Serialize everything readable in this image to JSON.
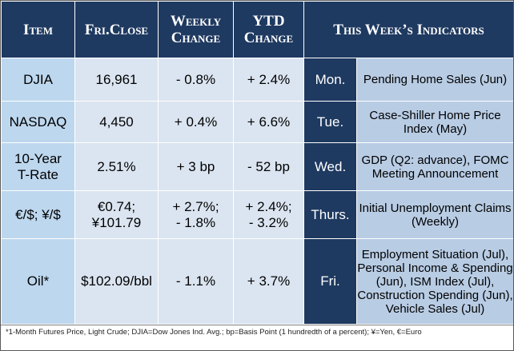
{
  "headers": {
    "item": "Item",
    "fri_close_1": "Fri.",
    "fri_close_2": "Close",
    "weekly_1": "Weekly",
    "weekly_2": "Change",
    "ytd_1": "YTD",
    "ytd_2": "Change",
    "indicators": "This Week’s Indicators"
  },
  "rows": [
    {
      "item": "DJIA",
      "close": "16,961",
      "weekly": "- 0.8%",
      "ytd": "+ 2.4%",
      "day": "Mon.",
      "indicator": "Pending Home Sales (Jun)"
    },
    {
      "item": "NASDAQ",
      "close": "4,450",
      "weekly": "+ 0.4%",
      "ytd": "+ 6.6%",
      "day": "Tue.",
      "indicator": "Case-Shiller Home Price Index (May)"
    },
    {
      "item_1": "10-Year",
      "item_2": "T-Rate",
      "close": "2.51%",
      "weekly": "+ 3 bp",
      "ytd": "- 52 bp",
      "day": "Wed.",
      "indicator": "GDP (Q2: advance), FOMC Meeting Announcement"
    },
    {
      "item": "€/$; ¥/$",
      "close_1": "€0.74;",
      "close_2": "¥101.79",
      "weekly_1": "+ 2.7%;",
      "weekly_2": "- 1.8%",
      "ytd_1": "+ 2.4%;",
      "ytd_2": "- 3.2%",
      "day": "Thurs.",
      "indicator": "Initial Unemployment Claims (Weekly)"
    },
    {
      "item": "Oil*",
      "close": "$102.09/bbl",
      "weekly": "- 1.1%",
      "ytd": "+ 3.7%",
      "day": "Fri.",
      "indicator": "Employment Situation (Jul), Personal Income & Spending (Jun), ISM Index (Jul), Construction Spending (Jun), Vehicle Sales (Jul)"
    }
  ],
  "footnote": "*1-Month Futures Price, Light Crude; DJIA=Dow Jones Ind. Avg.; bp=Basis Point (1 hundredth of a percent); ¥=Yen, €=Euro",
  "colors": {
    "header_bg": "#1f3a61",
    "item_bg": "#bdd7ee",
    "value_bg": "#dbe5f1",
    "indicator_bg": "#b8cce4"
  }
}
